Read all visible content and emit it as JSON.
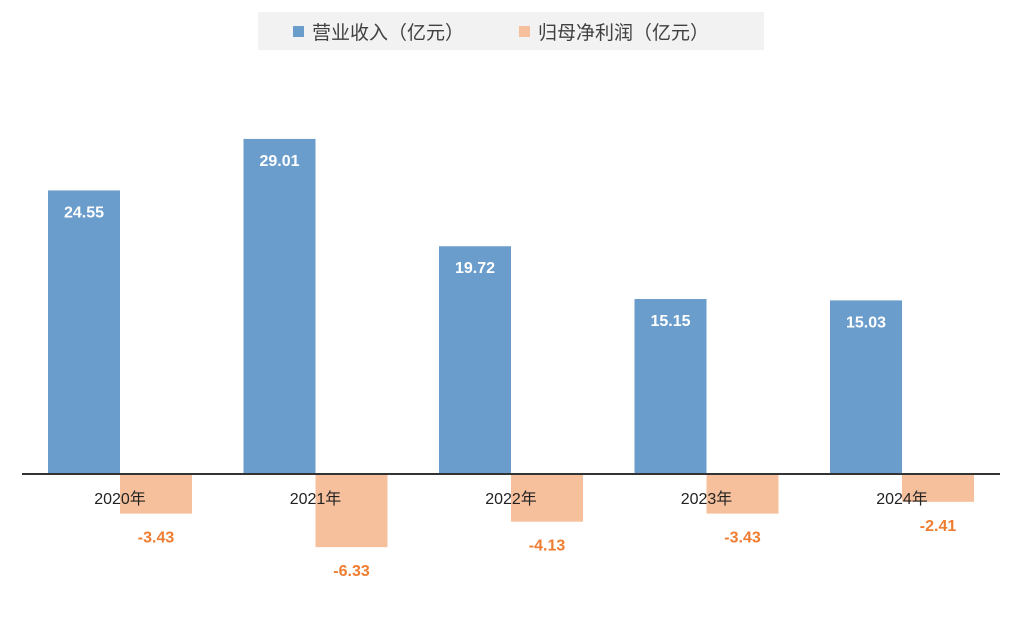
{
  "chart_data": {
    "type": "bar",
    "title": "",
    "xlabel": "",
    "ylabel": "",
    "categories": [
      "2020年",
      "2021年",
      "2022年",
      "2023年",
      "2024年"
    ],
    "series": [
      {
        "name": "营业收入（亿元）",
        "values": [
          24.55,
          29.01,
          19.72,
          15.15,
          15.03
        ],
        "color": "#6b9dcc",
        "label_color": "#ffffff"
      },
      {
        "name": "归母净利润（亿元）",
        "values": [
          -3.43,
          -6.33,
          -4.13,
          -3.43,
          -2.41
        ],
        "color": "#f7c09c",
        "label_color": "#ee7d31"
      }
    ],
    "value_labels": [
      [
        "24.55",
        "29.01",
        "19.72",
        "15.15",
        "15.03"
      ],
      [
        "-3.43",
        "-6.33",
        "-4.13",
        "-3.43",
        "-2.41"
      ]
    ],
    "ylim": [
      -7,
      31
    ],
    "grid": false,
    "legend_position": "top",
    "axis_color": "#333333"
  }
}
